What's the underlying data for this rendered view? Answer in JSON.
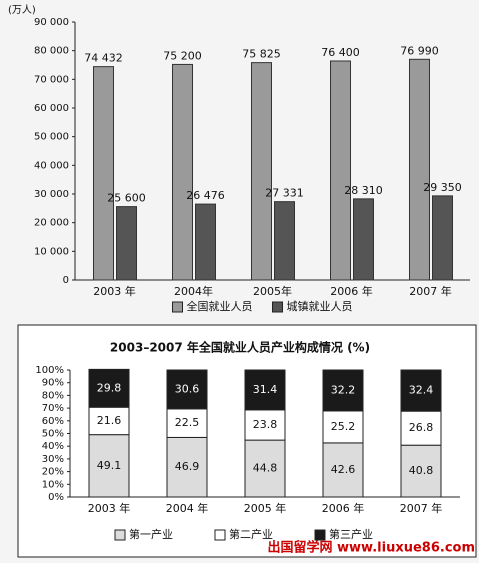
{
  "chart_data": [
    {
      "type": "bar",
      "y_label": "(万人)",
      "categories": [
        "2003 年",
        "2004年",
        "2005年",
        "2006 年",
        "2007 年"
      ],
      "series": [
        {
          "name": "全国就业人员",
          "color": "#9a9a9a",
          "values": [
            74432,
            75200,
            75825,
            76400,
            76990
          ],
          "value_labels": [
            "74 432",
            "75 200",
            "75 825",
            "76 400",
            "76 990"
          ]
        },
        {
          "name": "城镇就业人员",
          "color": "#555555",
          "values": [
            25600,
            26476,
            27331,
            28310,
            29350
          ],
          "value_labels": [
            "25 600",
            "26 476",
            "27 331",
            "28 310",
            "29 350"
          ]
        }
      ],
      "ylim": [
        0,
        90000
      ],
      "yticks": [
        0,
        {
          "value": 10000,
          "label": "10 000"
        },
        {
          "value": 20000,
          "label": "20 000"
        },
        {
          "value": 30000,
          "label": "30 000"
        },
        {
          "value": 40000,
          "label": "40 000"
        },
        {
          "value": 50000,
          "label": "50 000"
        },
        {
          "value": 60000,
          "label": "60 000"
        },
        {
          "value": 70000,
          "label": "70 000"
        },
        {
          "value": 80000,
          "label": "80 000"
        },
        {
          "value": 90000,
          "label": "90 000"
        }
      ]
    },
    {
      "type": "stacked_bar",
      "title": "2003–2007 年全国就业人员产业构成情况 (%)",
      "categories": [
        "2003 年",
        "2004 年",
        "2005 年",
        "2006 年",
        "2007 年"
      ],
      "series": [
        {
          "name": "第一产业",
          "color": "#dcdcdc",
          "values": [
            49.1,
            46.9,
            44.8,
            42.6,
            40.8
          ]
        },
        {
          "name": "第二产业",
          "color": "#ffffff",
          "values": [
            21.6,
            22.5,
            23.8,
            25.2,
            26.8
          ]
        },
        {
          "name": "第三产业",
          "color": "#1a1a1a",
          "values": [
            29.8,
            30.6,
            31.4,
            32.2,
            32.4
          ]
        }
      ],
      "ylim": [
        0,
        100
      ],
      "yticks": [
        {
          "value": 0,
          "label": "0%"
        },
        {
          "value": 10,
          "label": "10%"
        },
        {
          "value": 20,
          "label": "20%"
        },
        {
          "value": 30,
          "label": "30%"
        },
        {
          "value": 40,
          "label": "40%"
        },
        {
          "value": 50,
          "label": "50%"
        },
        {
          "value": 60,
          "label": "60%"
        },
        {
          "value": 70,
          "label": "70%"
        },
        {
          "value": 80,
          "label": "80%"
        },
        {
          "value": 90,
          "label": "90%"
        },
        {
          "value": 100,
          "label": "100%"
        }
      ]
    }
  ],
  "watermark": "出国留学网 www.liuxue86.com"
}
